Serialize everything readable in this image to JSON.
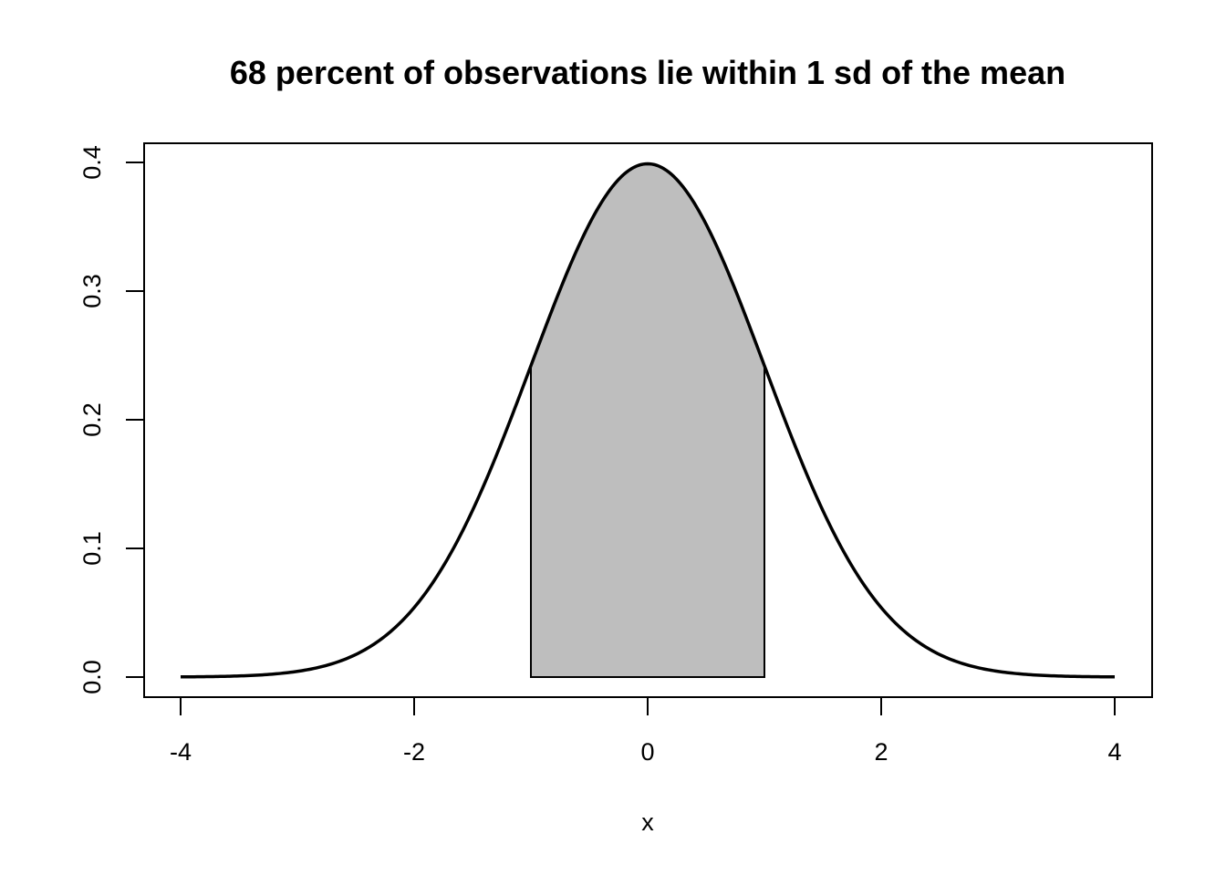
{
  "chart_data": {
    "type": "area",
    "title": "68 percent of observations lie within 1 sd of the mean",
    "xlabel": "x",
    "ylabel": "",
    "xlim": [
      -4,
      4
    ],
    "ylim": [
      0,
      0.4
    ],
    "x_ticks": [
      -4,
      -2,
      0,
      2,
      4
    ],
    "x_tick_labels": [
      "-4",
      "-2",
      "0",
      "2",
      "4"
    ],
    "y_ticks": [
      0.0,
      0.1,
      0.2,
      0.3,
      0.4
    ],
    "y_tick_labels": [
      "0.0",
      "0.1",
      "0.2",
      "0.3",
      "0.4"
    ],
    "curve": {
      "distribution": "normal",
      "mean": 0,
      "sd": 1,
      "x_range": [
        -4,
        4
      ],
      "color": "#000000"
    },
    "shaded_region": {
      "x_from": -1,
      "x_to": 1,
      "fill": "#bebebe",
      "stroke": "#000000"
    },
    "grid": false,
    "legend": "none"
  }
}
